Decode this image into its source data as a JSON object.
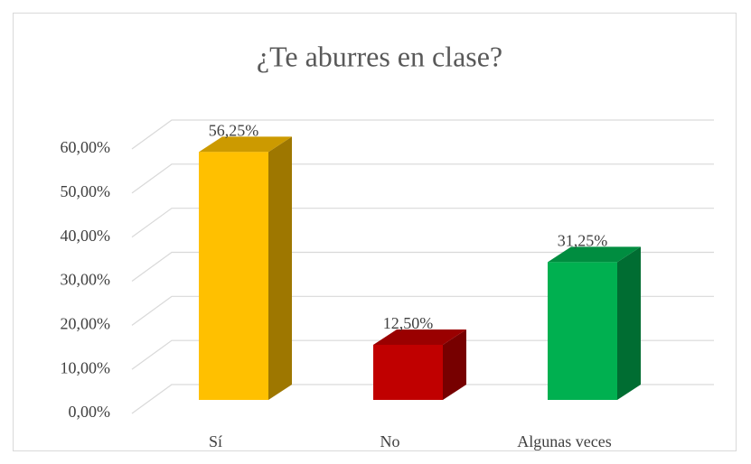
{
  "chart_data": {
    "type": "bar3d",
    "title": "¿Te aburres en clase?",
    "categories": [
      "Sí",
      "No",
      "Algunas veces"
    ],
    "values": [
      56.25,
      12.5,
      31.25
    ],
    "value_labels": [
      "56,25%",
      "12,50%",
      "31,25%"
    ],
    "colors": [
      "#ffc000",
      "#c00000",
      "#00b050"
    ],
    "ylim": [
      0,
      60
    ],
    "yticks": [
      {
        "value": 0,
        "label": "0,00%"
      },
      {
        "value": 10,
        "label": "10,00%"
      },
      {
        "value": 20,
        "label": "20,00%"
      },
      {
        "value": 30,
        "label": "30,00%"
      },
      {
        "value": 40,
        "label": "40,00%"
      },
      {
        "value": 50,
        "label": "50,00%"
      },
      {
        "value": 60,
        "label": "60,00%"
      }
    ],
    "grid": true
  }
}
